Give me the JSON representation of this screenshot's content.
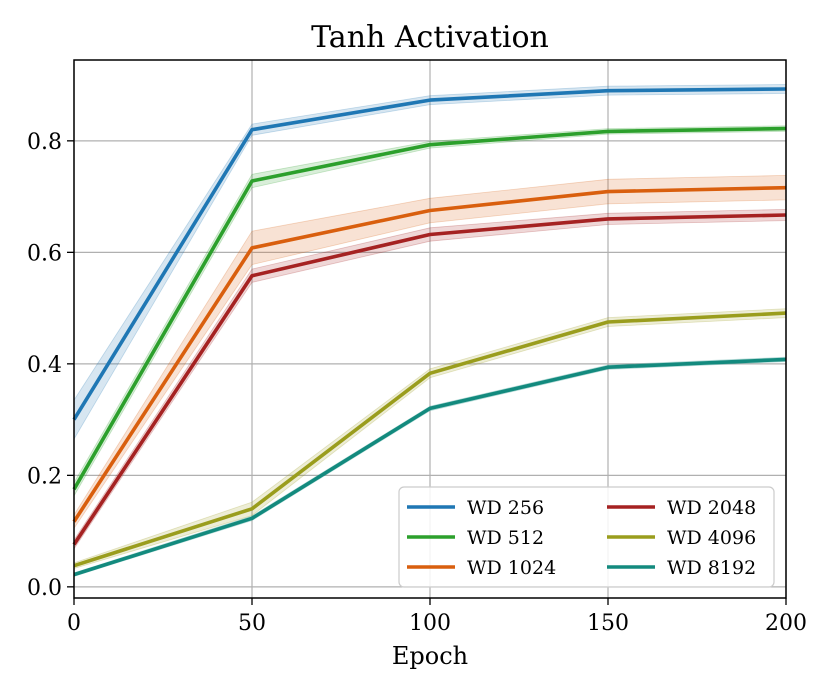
{
  "chart_data": {
    "type": "line",
    "title": "Tanh Activation",
    "xlabel": "Epoch",
    "ylabel": "",
    "xlim": [
      0,
      200
    ],
    "ylim": [
      -0.02,
      0.945
    ],
    "xticks": [
      0,
      50,
      100,
      150,
      200
    ],
    "xtick_labels": [
      "0",
      "50",
      "100",
      "150",
      "200"
    ],
    "yticks": [
      0.0,
      0.2,
      0.4,
      0.6,
      0.8
    ],
    "ytick_labels": [
      "0.0",
      "0.2",
      "0.4",
      "0.6",
      "0.8"
    ],
    "grid": true,
    "legend_position": "bottom-right",
    "legend_columns": 2,
    "x": [
      0,
      50,
      100,
      150,
      200
    ],
    "series": [
      {
        "name": "WD 256",
        "color": "#1f77b4",
        "values": [
          0.3,
          0.82,
          0.873,
          0.89,
          0.893
        ],
        "band": [
          0.035,
          0.01,
          0.008,
          0.008,
          0.008
        ]
      },
      {
        "name": "WD 512",
        "color": "#2ca02c",
        "values": [
          0.175,
          0.728,
          0.793,
          0.817,
          0.822
        ],
        "band": [
          0.012,
          0.012,
          0.006,
          0.005,
          0.005
        ]
      },
      {
        "name": "WD 1024",
        "color": "#d95f0e",
        "values": [
          0.117,
          0.608,
          0.675,
          0.709,
          0.716
        ],
        "band": [
          0.012,
          0.03,
          0.022,
          0.022,
          0.022
        ]
      },
      {
        "name": "WD 2048",
        "color": "#a52222",
        "values": [
          0.076,
          0.558,
          0.632,
          0.66,
          0.667
        ],
        "band": [
          0.008,
          0.012,
          0.012,
          0.01,
          0.01
        ]
      },
      {
        "name": "WD 4096",
        "color": "#9a9d1d",
        "values": [
          0.038,
          0.14,
          0.383,
          0.475,
          0.491
        ],
        "band": [
          0.005,
          0.012,
          0.008,
          0.008,
          0.008
        ]
      },
      {
        "name": "WD 8192",
        "color": "#138a7e",
        "values": [
          0.022,
          0.123,
          0.32,
          0.394,
          0.408
        ],
        "band": [
          0.003,
          0.004,
          0.004,
          0.004,
          0.004
        ]
      }
    ]
  }
}
